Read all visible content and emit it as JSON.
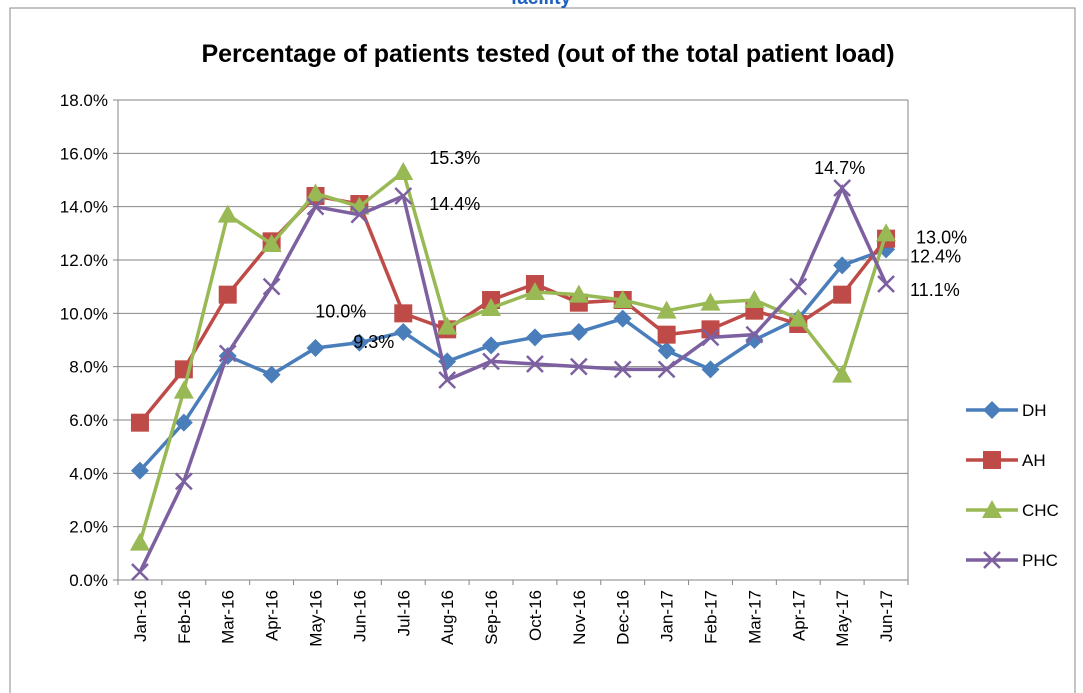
{
  "chart_data": {
    "type": "line",
    "subtitle": "facility",
    "title": "Percentage of patients tested (out of the total patient load)",
    "categories": [
      "Jan-16",
      "Feb-16",
      "Mar-16",
      "Apr-16",
      "May-16",
      "Jun-16",
      "Jul-16",
      "Aug-16",
      "Sep-16",
      "Oct-16",
      "Nov-16",
      "Dec-16",
      "Jan-17",
      "Feb-17",
      "Mar-17",
      "Apr-17",
      "May-17",
      "Jun-17"
    ],
    "series": [
      {
        "name": "DH",
        "color": "#4a7ebb",
        "marker": "diamond",
        "values": [
          4.1,
          5.9,
          8.4,
          7.7,
          8.7,
          8.9,
          9.3,
          8.2,
          8.8,
          9.1,
          9.3,
          9.8,
          8.6,
          7.9,
          9.0,
          9.8,
          11.8,
          12.4
        ],
        "value_labels": [
          null,
          null,
          null,
          null,
          null,
          null,
          "9.3%",
          null,
          null,
          null,
          null,
          null,
          null,
          null,
          null,
          null,
          null,
          "12.4%"
        ]
      },
      {
        "name": "AH",
        "color": "#be4b48",
        "marker": "square",
        "values": [
          5.9,
          7.9,
          10.7,
          12.7,
          14.4,
          14.1,
          10.0,
          9.4,
          10.5,
          11.1,
          10.4,
          10.5,
          9.2,
          9.4,
          10.1,
          9.6,
          10.7,
          12.8
        ],
        "value_labels": [
          null,
          null,
          null,
          null,
          null,
          null,
          "10.0%",
          null,
          null,
          null,
          null,
          null,
          null,
          null,
          null,
          null,
          null,
          null
        ]
      },
      {
        "name": "CHC",
        "color": "#98b954",
        "marker": "triangle",
        "values": [
          1.4,
          7.1,
          13.7,
          12.6,
          14.5,
          14.0,
          15.3,
          9.5,
          10.2,
          10.8,
          10.7,
          10.5,
          10.1,
          10.4,
          10.5,
          9.8,
          7.7,
          13.0
        ],
        "value_labels": [
          null,
          null,
          null,
          null,
          null,
          null,
          "15.3%",
          null,
          null,
          null,
          null,
          null,
          null,
          null,
          null,
          null,
          null,
          "13.0%"
        ]
      },
      {
        "name": "PHC",
        "color": "#7d60a0",
        "marker": "x",
        "values": [
          0.3,
          3.7,
          8.5,
          11.0,
          14.0,
          13.7,
          14.4,
          7.5,
          8.2,
          8.1,
          8.0,
          7.9,
          7.9,
          9.1,
          9.2,
          11.0,
          14.7,
          11.1
        ],
        "value_labels": [
          null,
          null,
          null,
          null,
          null,
          null,
          "14.4%",
          null,
          null,
          null,
          null,
          null,
          null,
          null,
          null,
          null,
          "14.7%",
          "11.1%"
        ]
      }
    ],
    "ylim": [
      0,
      18
    ],
    "yticks": [
      {
        "value": 0,
        "label": "0.0%"
      },
      {
        "value": 2,
        "label": "2.0%"
      },
      {
        "value": 4,
        "label": "4.0%"
      },
      {
        "value": 6,
        "label": "6.0%"
      },
      {
        "value": 8,
        "label": "8.0%"
      },
      {
        "value": 10,
        "label": "10.0%"
      },
      {
        "value": 12,
        "label": "12.0%"
      },
      {
        "value": 14,
        "label": "14.0%"
      },
      {
        "value": 16,
        "label": "16.0%"
      },
      {
        "value": 18,
        "label": "18.0%"
      }
    ],
    "grid": true,
    "legend": "right"
  }
}
